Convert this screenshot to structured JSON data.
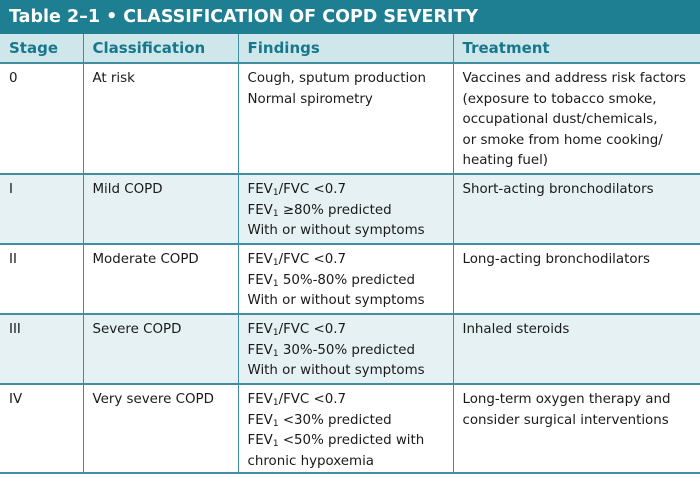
{
  "table": {
    "number": "Table 2–1",
    "separator": "•",
    "title": "CLASSIFICATION OF COPD SEVERITY",
    "headers": [
      "Stage",
      "Classification",
      "Findings",
      "Treatment"
    ],
    "rows": [
      {
        "stage": "0",
        "classification": "At risk",
        "findings": [
          {
            "text": "Cough, sputum production"
          },
          {
            "text": "Normal spirometry"
          }
        ],
        "treatment": [
          "Vaccines and address risk factors",
          "(exposure to tobacco smoke,",
          "occupational dust/chemicals,",
          "or smoke from home cooking/",
          "heating fuel)"
        ]
      },
      {
        "stage": "I",
        "classification": "Mild COPD",
        "findings": [
          {
            "pre": "FEV",
            "sub": "1",
            "post": "/FVC <0.7"
          },
          {
            "pre": "FEV",
            "sub": "1",
            "post": " ≥80% predicted"
          },
          {
            "text": "With or without symptoms"
          }
        ],
        "treatment": [
          "Short-acting bronchodilators"
        ]
      },
      {
        "stage": "II",
        "classification": "Moderate COPD",
        "findings": [
          {
            "pre": "FEV",
            "sub": "1",
            "post": "/FVC <0.7"
          },
          {
            "pre": "FEV",
            "sub": "1",
            "post": " 50%-80% predicted"
          },
          {
            "text": "With or without symptoms"
          }
        ],
        "treatment": [
          "Long-acting bronchodilators"
        ]
      },
      {
        "stage": "III",
        "classification": "Severe COPD",
        "findings": [
          {
            "pre": "FEV",
            "sub": "1",
            "post": "/FVC <0.7"
          },
          {
            "pre": "FEV",
            "sub": "1",
            "post": " 30%-50% predicted"
          },
          {
            "text": "With or without symptoms"
          }
        ],
        "treatment": [
          "Inhaled steroids"
        ]
      },
      {
        "stage": "IV",
        "classification": "Very severe COPD",
        "findings": [
          {
            "pre": "FEV",
            "sub": "1",
            "post": "/FVC <0.7"
          },
          {
            "pre": "FEV",
            "sub": "1",
            "post": " <30% predicted"
          },
          {
            "pre": "FEV",
            "sub": "1",
            "post": " <50% predicted with"
          },
          {
            "text": "chronic hypoxemia"
          }
        ],
        "treatment": [
          "Long-term oxygen therapy and",
          "consider surgical interventions"
        ]
      }
    ]
  }
}
